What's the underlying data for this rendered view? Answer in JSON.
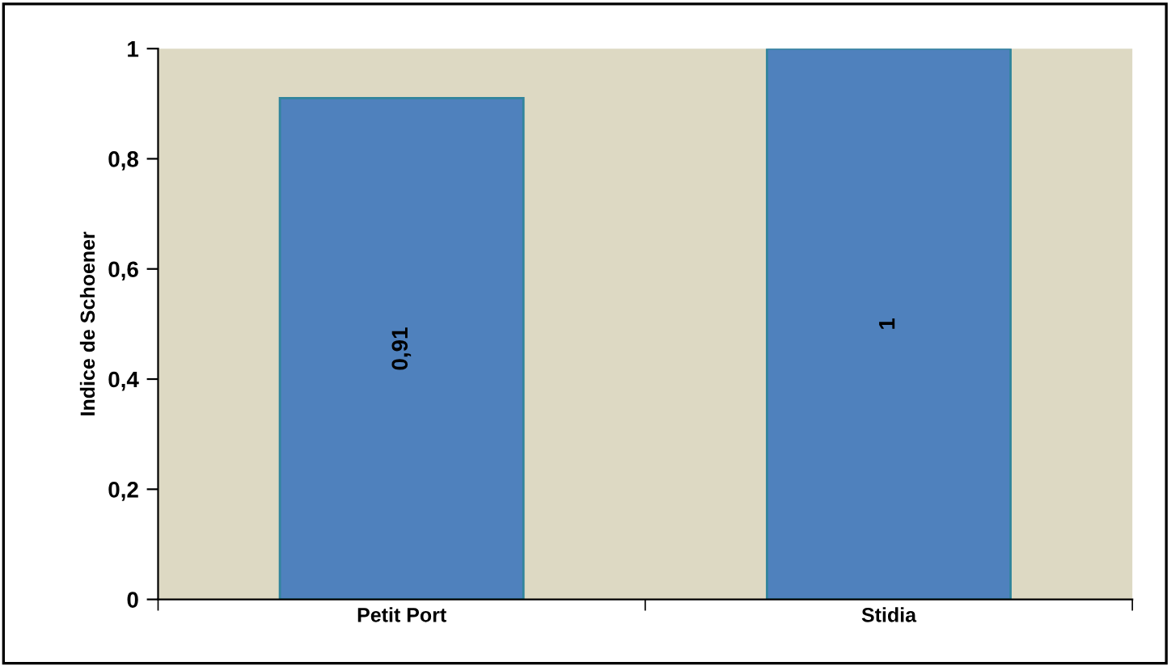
{
  "chart_data": {
    "type": "bar",
    "ylabel": "Indice de Schoener",
    "categories": [
      "Petit Port",
      "Stidia"
    ],
    "values": [
      0.91,
      1
    ],
    "value_labels": [
      "0,91",
      "1"
    ],
    "color": "#4f81bd",
    "ylim": [
      0,
      1
    ],
    "yticks": [
      0,
      {
        "value": 0.2,
        "label": "0,2"
      },
      {
        "value": 0.4,
        "label": "0,4"
      },
      {
        "value": 0.6,
        "label": "0,6"
      },
      {
        "value": 0.8,
        "label": "0,8"
      },
      1
    ],
    "grid": false
  }
}
